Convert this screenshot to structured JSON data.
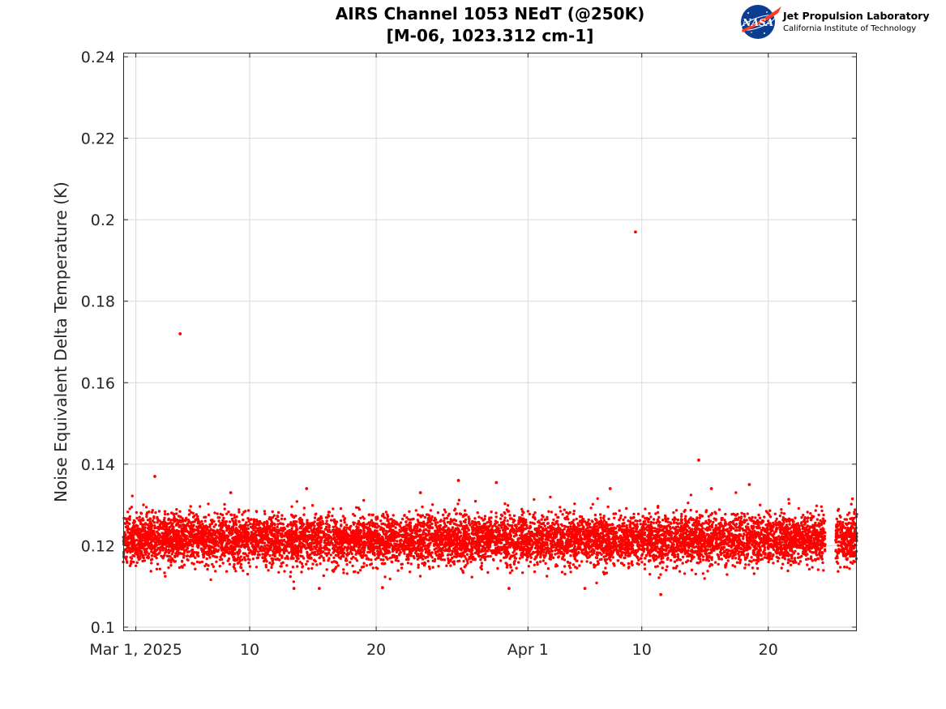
{
  "logo": {
    "nasa_text": "NASA",
    "line1": "Jet Propulsion Laboratory",
    "line2": "California Institute of Technology"
  },
  "chart_data": {
    "type": "scatter",
    "title": "AIRS Channel 1053 NEdT (@250K)",
    "subtitle": "[M-06, 1023.312 cm-1]",
    "xlabel": "",
    "ylabel": "Noise Equivalent Delta Temperature (K)",
    "x_domain": [
      "2025-02-28",
      "2025-04-27"
    ],
    "ylim": [
      0.099,
      0.241
    ],
    "x_ticks": [
      {
        "date": "2025-03-01",
        "label": "Mar 1, 2025"
      },
      {
        "date": "2025-03-10",
        "label": "10"
      },
      {
        "date": "2025-03-20",
        "label": "20"
      },
      {
        "date": "2025-04-01",
        "label": "Apr 1"
      },
      {
        "date": "2025-04-10",
        "label": "10"
      },
      {
        "date": "2025-04-20",
        "label": "20"
      }
    ],
    "y_ticks": [
      0.1,
      0.12,
      0.14,
      0.16,
      0.18,
      0.2,
      0.22,
      0.24
    ],
    "y_tick_labels": [
      "0.1",
      "0.12",
      "0.14",
      "0.16",
      "0.18",
      "0.2",
      "0.22",
      "0.24"
    ],
    "grid": true,
    "marker_color": "#ff0000",
    "series": [
      {
        "name": "",
        "bulk_band": {
          "date_range": [
            "2025-02-28",
            "2025-04-27"
          ],
          "data_gap": [
            "2025-04-24",
            "2025-04-25"
          ],
          "median": 0.1215,
          "std": 0.003,
          "min": 0.108,
          "max": 0.136
        },
        "points": [
          {
            "x": "2025-03-04",
            "y": 0.172
          },
          {
            "x": "2025-04-09",
            "y": 0.197
          },
          {
            "x": "2025-04-14",
            "y": 0.141
          },
          {
            "x": "2025-03-02",
            "y": 0.137
          },
          {
            "x": "2025-03-26",
            "y": 0.136
          },
          {
            "x": "2025-03-29",
            "y": 0.1355
          },
          {
            "x": "2025-04-18",
            "y": 0.135
          },
          {
            "x": "2025-03-14",
            "y": 0.134
          },
          {
            "x": "2025-04-15",
            "y": 0.134
          },
          {
            "x": "2025-04-07",
            "y": 0.134
          },
          {
            "x": "2025-03-23",
            "y": 0.133
          },
          {
            "x": "2025-03-08",
            "y": 0.133
          },
          {
            "x": "2025-04-11",
            "y": 0.108
          },
          {
            "x": "2025-04-05",
            "y": 0.1095
          },
          {
            "x": "2025-03-13",
            "y": 0.1095
          },
          {
            "x": "2025-03-15",
            "y": 0.1095
          },
          {
            "x": "2025-03-30",
            "y": 0.1095
          },
          {
            "x": "2025-03-20",
            "y": 0.1097
          }
        ]
      }
    ]
  }
}
